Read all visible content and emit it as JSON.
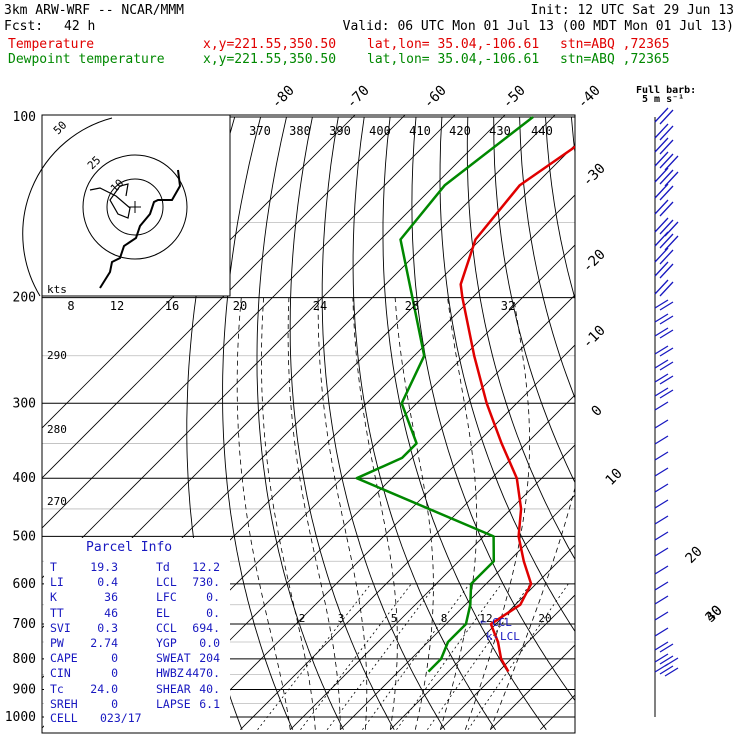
{
  "header": {
    "model": "3km ARW-WRF -- NCAR/MMM",
    "init": "Init: 12 UTC Sat 29 Jun 13",
    "fcst_label": "Fcst:",
    "fcst_value": "42 h",
    "valid": "Valid: 06 UTC Mon 01 Jul 13 (00 MDT Mon 01 Jul 13)",
    "temp_label": "Temperature",
    "temp_xy": "x,y=221.55,350.50",
    "temp_latlon": "lat,lon= 35.04,-106.61",
    "temp_stn": "stn=ABQ ,72365",
    "dew_label": "Dewpoint temperature",
    "dew_xy": "x,y=221.55,350.50",
    "dew_latlon": "lat,lon= 35.04,-106.61",
    "dew_stn": "stn=ABQ ,72365",
    "barb_title": "Full barb:",
    "barb_unit": "5 m s⁻¹"
  },
  "colors": {
    "temperature": "#e00000",
    "dewpoint": "#008800",
    "barbs": "#1818c0",
    "isobars": "#000000",
    "theta_e_lines": "#000000"
  },
  "chart_data": {
    "type": "line",
    "chart_kind": "skew-T log-P sounding",
    "pressure_levels": [
      100,
      200,
      300,
      400,
      500,
      600,
      700,
      800,
      900,
      1000
    ],
    "isotherm_labels": [
      "-80",
      "-70",
      "-60",
      "-50",
      "-40",
      "-30",
      "-20",
      "-10",
      "0",
      "10",
      "20",
      "30",
      "40"
    ],
    "theta_e_labels": [
      "370",
      "380",
      "390",
      "400",
      "410",
      "420",
      "430",
      "440"
    ],
    "dry_adiabat_labels": [
      "290",
      "280",
      "270"
    ],
    "mixing_ratio_labels": [
      "2",
      "3",
      "5",
      "8",
      "12",
      "20"
    ],
    "hodograph": {
      "unit": "kts",
      "ring_labels": [
        "10",
        "25",
        "50"
      ],
      "axis_labels": [
        "8",
        "12",
        "16",
        "20",
        "24",
        "28",
        "32"
      ]
    },
    "lcl_marker": "CCL",
    "lcl_marker2": "LCL",
    "series": [
      {
        "name": "Temperature",
        "pressure": [
          100,
          130,
          160,
          190,
          200,
          250,
          300,
          350,
          400,
          450,
          500,
          550,
          600,
          650,
          700,
          750,
          800,
          840
        ],
        "temperature_c": [
          -67,
          -73,
          -71,
          -65,
          -62,
          -48,
          -36,
          -25,
          -15,
          -8,
          -3,
          3,
          9,
          11,
          9,
          14,
          18,
          22
        ]
      },
      {
        "name": "Dewpoint temperature",
        "pressure": [
          100,
          130,
          160,
          200,
          250,
          300,
          350,
          370,
          400,
          500,
          550,
          600,
          650,
          700,
          750,
          800,
          840
        ],
        "temperature_c": [
          -84,
          -88,
          -86,
          -72,
          -58,
          -53,
          -42,
          -42,
          -47,
          -8,
          -3,
          -3,
          1,
          4,
          4,
          6,
          6
        ]
      }
    ]
  },
  "parcel_info": {
    "title": "Parcel Info",
    "rows": [
      {
        "l1": "T",
        "v1": "19.3",
        "l2": "Td",
        "v2": "12.2"
      },
      {
        "l1": "LI",
        "v1": "0.4",
        "l2": "LCL",
        "v2": "730."
      },
      {
        "l1": "K",
        "v1": "36",
        "l2": "LFC",
        "v2": "0."
      },
      {
        "l1": "TT",
        "v1": "46",
        "l2": "EL",
        "v2": "0."
      },
      {
        "l1": "SVI",
        "v1": "0.3",
        "l2": "CCL",
        "v2": "694."
      },
      {
        "l1": "PW",
        "v1": "2.74",
        "l2": "YGP",
        "v2": "0.0"
      },
      {
        "l1": "CAPE",
        "v1": "0",
        "l2": "SWEAT",
        "v2": "204"
      },
      {
        "l1": "CIN",
        "v1": "0",
        "l2": "HWBZ",
        "v2": "4470."
      },
      {
        "l1": "Tc",
        "v1": "24.0",
        "l2": "SHEAR",
        "v2": "40."
      },
      {
        "l1": "SREH",
        "v1": "0",
        "l2": "LAPSE",
        "v2": "6.1"
      }
    ],
    "cell_label": "CELL",
    "cell_value": "023/17"
  }
}
